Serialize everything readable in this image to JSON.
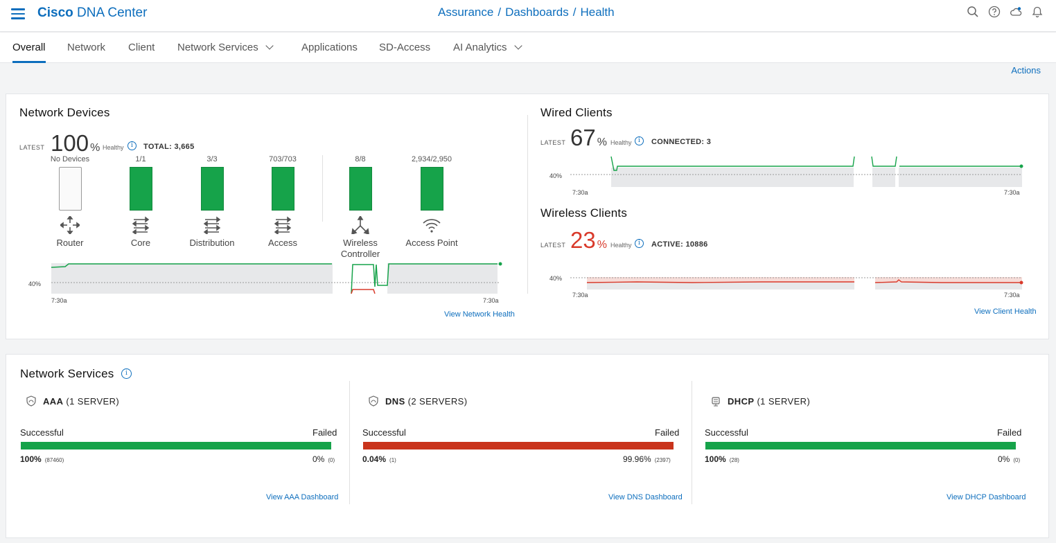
{
  "header": {
    "brand_bold": "Cisco",
    "brand_rest": "DNA Center",
    "breadcrumb": [
      "Assurance",
      "Dashboards",
      "Health"
    ],
    "icons": [
      "search-icon",
      "help-icon",
      "cloud-icon",
      "bell-icon"
    ]
  },
  "tabs": [
    {
      "label": "Overall",
      "active": true
    },
    {
      "label": "Network"
    },
    {
      "label": "Client"
    },
    {
      "label": "Network Services",
      "dropdown": true
    },
    {
      "label": "Applications"
    },
    {
      "label": "SD-Access"
    },
    {
      "label": "AI Analytics",
      "dropdown": true
    }
  ],
  "actions_label": "Actions",
  "network_devices": {
    "title": "Network Devices",
    "latest_label": "LATEST",
    "percent": "100",
    "percent_sign": "%",
    "healthy_label": "Healthy",
    "total": "TOTAL: 3,665",
    "devices": [
      {
        "count": "No Devices",
        "label": "Router",
        "icon": "router-icon",
        "fill": 0
      },
      {
        "count": "1/1",
        "label": "Core",
        "icon": "core-switch-icon",
        "fill": 1
      },
      {
        "count": "3/3",
        "label": "Distribution",
        "icon": "distribution-switch-icon",
        "fill": 1
      },
      {
        "count": "703/703",
        "label": "Access",
        "icon": "access-switch-icon",
        "fill": 1
      },
      {
        "count": "8/8",
        "label": "Wireless Controller",
        "icon": "wireless-controller-icon",
        "fill": 1
      },
      {
        "count": "2,934/2,950",
        "label": "Access Point",
        "icon": "access-point-icon",
        "fill": 1
      }
    ],
    "threshold_label": "40%",
    "time_start": "7:30a",
    "time_end": "7:30a",
    "view_link": "View Network Health"
  },
  "wired_clients": {
    "title": "Wired Clients",
    "latest_label": "LATEST",
    "percent": "67",
    "percent_sign": "%",
    "healthy_label": "Healthy",
    "stat": "CONNECTED: 3",
    "threshold_label": "40%",
    "time_start": "7:30a",
    "time_end": "7:30a"
  },
  "wireless_clients": {
    "title": "Wireless Clients",
    "latest_label": "LATEST",
    "percent": "23",
    "percent_sign": "%",
    "healthy_label": "Healthy",
    "stat": "ACTIVE: 10886",
    "threshold_label": "40%",
    "time_start": "7:30a",
    "time_end": "7:30a",
    "view_link": "View Client Health"
  },
  "network_services": {
    "title": "Network Services",
    "successful_label": "Successful",
    "failed_label": "Failed",
    "services": [
      {
        "name": "AAA",
        "servers": "(1  SERVER)",
        "icon": "shield-icon",
        "success_pct": "100%",
        "success_count": "(87460)",
        "failed_pct": "0%",
        "failed_count": "(0)",
        "bar_color": "#16a34a",
        "link": "View AAA Dashboard"
      },
      {
        "name": "DNS",
        "servers": "(2  SERVERS)",
        "icon": "shield-icon",
        "success_pct": "0.04%",
        "success_count": "(1)",
        "failed_pct": "99.96%",
        "failed_count": "(2397)",
        "bar_color": "#c9341c",
        "link": "View DNS Dashboard"
      },
      {
        "name": "DHCP",
        "servers": "(1  SERVER)",
        "icon": "dhcp-server-icon",
        "success_pct": "100%",
        "success_count": "(28)",
        "failed_pct": "0%",
        "failed_count": "(0)",
        "bar_color": "#16a34a",
        "link": "View DHCP Dashboard"
      }
    ]
  },
  "colors": {
    "accent": "#0d6ebd",
    "healthy": "#16a34a",
    "critical": "#d93a2b"
  }
}
